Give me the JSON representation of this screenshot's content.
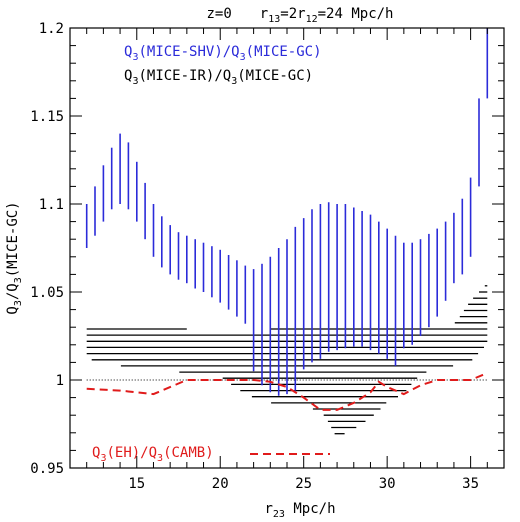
{
  "chart_data": {
    "type": "line",
    "title": "z=0   r13=2r12=24 Mpc/h",
    "title_parts": {
      "redshift": "z=0",
      "r13": "13",
      "mid": "=2r",
      "r12": "12",
      "tail": "=24 Mpc/h"
    },
    "xlabel": "r23 Mpc/h",
    "xlabel_parts": {
      "base": "r",
      "sub": "23",
      "unit": " Mpc/h"
    },
    "ylabel": "Q3/Q3(MICE-GC)",
    "ylabel_parts": {
      "q": "Q",
      "sub": "3",
      "slash": "/Q",
      "sub2": "3",
      "rest": "(MICE-GC)"
    },
    "xlim": [
      11,
      37
    ],
    "ylim": [
      0.95,
      1.2
    ],
    "xticks": [
      15,
      20,
      25,
      30,
      35
    ],
    "yticks": [
      0.95,
      1,
      1.05,
      1.1,
      1.15,
      1.2
    ],
    "ytick_labels": [
      "0.95",
      "1",
      "1.05",
      "1.1",
      "1.15",
      "1.2"
    ],
    "colors": {
      "shv": "#2b2bd9",
      "ir": "#000000",
      "eh": "#e01b1b",
      "axis": "#000000"
    },
    "legend": [
      {
        "q": "Q",
        "sub": "3",
        "text": "(MICE-SHV)/Q",
        "sub2": "3",
        "tail": "(MICE-GC)",
        "color": "#2b2bd9"
      },
      {
        "q": "Q",
        "sub": "3",
        "text": "(MICE-IR)/Q",
        "sub2": "3",
        "tail": "(MICE-GC)",
        "color": "#000000"
      },
      {
        "q": "Q",
        "sub": "3",
        "text": "(EH)/Q",
        "sub2": "3",
        "tail": "(CAMB)",
        "color": "#e01b1b"
      }
    ],
    "reference_line": {
      "y": 1.0,
      "style": "dotted"
    },
    "series": [
      {
        "name": "Q3(MICE-SHV)/Q3(MICE-GC)",
        "kind": "vertical-error-bars",
        "x": [
          12,
          12.5,
          13,
          13.5,
          14,
          14.5,
          15,
          15.5,
          16,
          16.5,
          17,
          17.5,
          18,
          18.5,
          19,
          19.5,
          20,
          20.5,
          21,
          21.5,
          22,
          22.5,
          23,
          23.5,
          24,
          24.5,
          25,
          25.5,
          26,
          26.5,
          27,
          27.5,
          28,
          28.5,
          29,
          29.5,
          30,
          30.5,
          31,
          31.5,
          32,
          32.5,
          33,
          33.5,
          34,
          34.5,
          35,
          35.5,
          36
        ],
        "low": [
          1.075,
          1.082,
          1.09,
          1.097,
          1.1,
          1.097,
          1.09,
          1.08,
          1.07,
          1.064,
          1.06,
          1.057,
          1.055,
          1.052,
          1.05,
          1.047,
          1.044,
          1.04,
          1.036,
          1.032,
          1.005,
          0.997,
          0.993,
          0.991,
          0.992,
          0.994,
          1.006,
          1.01,
          1.012,
          1.016,
          1.017,
          1.018,
          1.019,
          1.019,
          1.017,
          1.015,
          1.012,
          1.008,
          1.018,
          1.02,
          1.025,
          1.03,
          1.036,
          1.045,
          1.055,
          1.06,
          1.07,
          1.11,
          1.16
        ],
        "high": [
          1.1,
          1.11,
          1.122,
          1.132,
          1.14,
          1.135,
          1.124,
          1.112,
          1.1,
          1.093,
          1.088,
          1.084,
          1.082,
          1.08,
          1.078,
          1.076,
          1.074,
          1.071,
          1.068,
          1.065,
          1.063,
          1.066,
          1.07,
          1.075,
          1.08,
          1.087,
          1.092,
          1.097,
          1.1,
          1.101,
          1.1,
          1.1,
          1.098,
          1.096,
          1.094,
          1.09,
          1.086,
          1.082,
          1.078,
          1.078,
          1.08,
          1.083,
          1.086,
          1.09,
          1.095,
          1.103,
          1.115,
          1.16,
          1.2
        ]
      },
      {
        "name": "Q3(MICE-IR)/Q3(MICE-GC)",
        "kind": "horizontal-band-hatching",
        "x": [
          12,
          13,
          14,
          15,
          16,
          17,
          18,
          19,
          20,
          21,
          22,
          23,
          24,
          25,
          26,
          27,
          28,
          29,
          30,
          31,
          32,
          33,
          34,
          35,
          36
        ],
        "low": [
          1.012,
          1.01,
          1.008,
          1.006,
          1.005,
          1.005,
          1.004,
          1.004,
          1.002,
          0.995,
          0.99,
          0.987,
          0.986,
          0.984,
          0.983,
          0.967,
          0.972,
          0.978,
          0.987,
          0.992,
          1.003,
          1.007,
          1.008,
          1.01,
          1.02
        ],
        "high": [
          1.03,
          1.031,
          1.031,
          1.031,
          1.03,
          1.03,
          1.029,
          1.028,
          1.028,
          1.028,
          1.028,
          1.029,
          1.029,
          1.03,
          1.03,
          1.03,
          1.03,
          1.03,
          1.03,
          1.03,
          1.03,
          1.03,
          1.032,
          1.045,
          1.055
        ]
      },
      {
        "name": "Q3(EH)/Q3(CAMB)",
        "kind": "dashed-line",
        "x": [
          12,
          14,
          16,
          18,
          20,
          22,
          23,
          24,
          25,
          26,
          27,
          28,
          29,
          29.5,
          30,
          31,
          32,
          33,
          34,
          35,
          36
        ],
        "y": [
          0.995,
          0.994,
          0.992,
          1.0,
          1.0,
          1.0,
          0.999,
          0.996,
          0.99,
          0.983,
          0.983,
          0.987,
          0.993,
          0.999,
          0.996,
          0.992,
          0.997,
          1.0,
          1.0,
          1.0,
          1.004
        ]
      }
    ]
  }
}
